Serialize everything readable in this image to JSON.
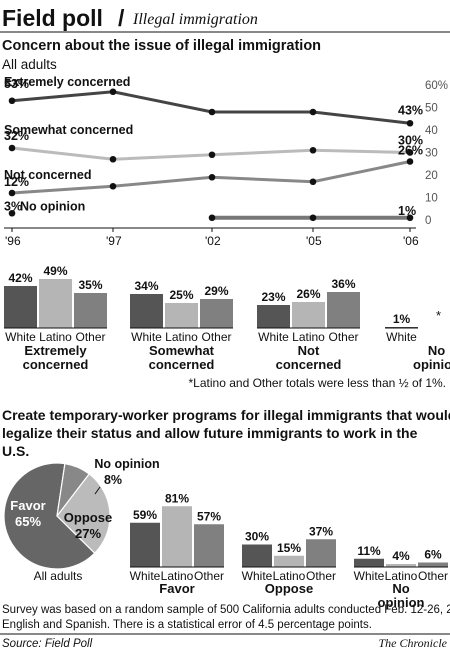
{
  "header": {
    "brand": "Field poll",
    "separator": "/",
    "topic": "Illegal immigration"
  },
  "section1": {
    "title": "Concern about the issue of illegal immigration",
    "subtitle": "All adults"
  },
  "chart_data": [
    {
      "type": "line",
      "title": "Concern about the issue of illegal immigration",
      "subtitle": "All adults",
      "x": [
        "'96",
        "'97",
        "'02",
        "'05",
        "'06"
      ],
      "y_ticks": [
        "0",
        "10",
        "20",
        "30",
        "40",
        "50",
        "60%"
      ],
      "ylim": [
        0,
        60
      ],
      "grid": false,
      "series": [
        {
          "name": "Extremely concerned",
          "values": [
            53,
            57,
            48,
            48,
            43
          ],
          "color": "#444444",
          "labels": [
            {
              "index": 0,
              "text": "53%"
            },
            {
              "index": 4,
              "text": "43%"
            }
          ]
        },
        {
          "name": "Somewhat concerned",
          "values": [
            32,
            27,
            29,
            31,
            30
          ],
          "color": "#bbbbbb",
          "labels": [
            {
              "index": 0,
              "text": "32%"
            },
            {
              "index": 4,
              "text": "30%"
            }
          ]
        },
        {
          "name": "Not concerned",
          "values": [
            12,
            15,
            19,
            17,
            26
          ],
          "color": "#888888",
          "labels": [
            {
              "index": 0,
              "text": "12%"
            },
            {
              "index": 4,
              "text": "26%"
            }
          ]
        },
        {
          "name": "No opinion",
          "values": [
            3,
            null,
            1,
            1,
            1
          ],
          "color": "#777777",
          "labels": [
            {
              "index": 0,
              "text": "3%"
            },
            {
              "index": 4,
              "text": "1%"
            }
          ]
        }
      ]
    },
    {
      "type": "bar",
      "categories": [
        "White",
        "Latino",
        "Other"
      ],
      "ylim": [
        0,
        60
      ],
      "groups": [
        {
          "label": "Extremely concerned",
          "values": [
            42,
            49,
            35
          ],
          "labels": [
            "42%",
            "49%",
            "35%"
          ]
        },
        {
          "label": "Somewhat concerned",
          "values": [
            34,
            25,
            29
          ],
          "labels": [
            "34%",
            "25%",
            "29%"
          ]
        },
        {
          "label": "Not concerned",
          "values": [
            23,
            26,
            36
          ],
          "labels": [
            "23%",
            "26%",
            "36%"
          ]
        },
        {
          "label": "No opinion",
          "values": [
            1,
            null,
            null
          ],
          "labels": [
            "1%",
            "",
            ""
          ],
          "categories": [
            "White"
          ],
          "mark": "*"
        }
      ],
      "colors": [
        "#555555",
        "#b5b5b5",
        "#808080"
      ],
      "footnote": "*Latino and Other totals were less than ½ of 1%."
    },
    {
      "type": "pie",
      "title": "Create temporary-worker programs for illegal immigrants that would legalize their status and allow future immigrants to work in the U.S.",
      "caption": "All adults",
      "slices": [
        {
          "label": "Favor",
          "value": 65,
          "text": "65%",
          "color": "#666666"
        },
        {
          "label": "Oppose",
          "value": 27,
          "text": "27%",
          "color": "#bbbbbb"
        },
        {
          "label": "No opinion",
          "value": 8,
          "text": "8%",
          "color": "#888888"
        }
      ]
    },
    {
      "type": "bar",
      "categories": [
        "White",
        "Latino",
        "Other"
      ],
      "ylim": [
        0,
        100
      ],
      "groups": [
        {
          "label": "Favor",
          "values": [
            59,
            81,
            57
          ],
          "labels": [
            "59%",
            "81%",
            "57%"
          ]
        },
        {
          "label": "Oppose",
          "values": [
            30,
            15,
            37
          ],
          "labels": [
            "30%",
            "15%",
            "37%"
          ]
        },
        {
          "label": "No opinion",
          "values": [
            11,
            4,
            6
          ],
          "labels": [
            "11%",
            "4%",
            "6%"
          ]
        }
      ],
      "colors": [
        "#555555",
        "#b5b5b5",
        "#808080"
      ]
    }
  ],
  "footer": {
    "method": "Survey was based on a random sample of 500 California adults conducted Feb. 12-26, 2006, in English and Spanish. There is a statistical error of 4.5 percentage points.",
    "source": "Source: Field Poll",
    "credit": "The Chronicle"
  }
}
